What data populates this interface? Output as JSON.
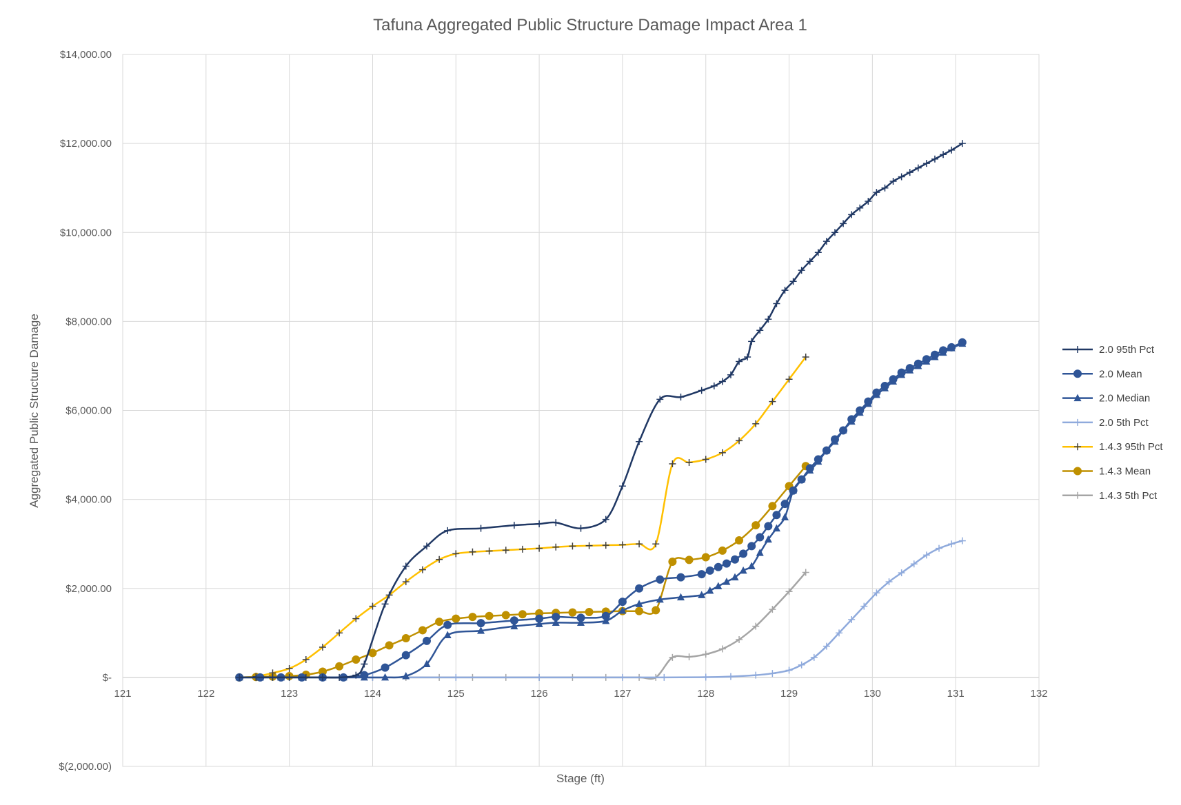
{
  "chart_data": {
    "type": "line",
    "title": "Tafuna Aggregated Public Structure Damage Impact Area 1",
    "xlabel": "Stage (ft)",
    "ylabel": "Aggregated Public Structure Damage",
    "xlim": [
      121,
      132
    ],
    "ylim": [
      -2000,
      14000
    ],
    "x_ticks": [
      "121",
      "122",
      "123",
      "124",
      "125",
      "126",
      "127",
      "128",
      "129",
      "130",
      "131",
      "132"
    ],
    "y_ticks": [
      "$(2,000.00)",
      "$-",
      "$2,000.00",
      "$4,000.00",
      "$6,000.00",
      "$8,000.00",
      "$10,000.00",
      "$12,000.00",
      "$14,000.00"
    ],
    "y_tick_values": [
      -2000,
      0,
      2000,
      4000,
      6000,
      8000,
      10000,
      12000,
      14000
    ],
    "grid": true,
    "legend_position": "right",
    "series": [
      {
        "name": "2.0 95th Pct",
        "color": "#203864",
        "marker": "plus",
        "points": [
          [
            122.4,
            0
          ],
          [
            122.6,
            0
          ],
          [
            122.8,
            0
          ],
          [
            123.0,
            0
          ],
          [
            123.2,
            0
          ],
          [
            123.4,
            0
          ],
          [
            123.6,
            0
          ],
          [
            123.8,
            50
          ],
          [
            123.9,
            300
          ],
          [
            124.15,
            1650
          ],
          [
            124.4,
            2500
          ],
          [
            124.65,
            2950
          ],
          [
            124.9,
            3300
          ],
          [
            125.3,
            3350
          ],
          [
            125.7,
            3420
          ],
          [
            126.0,
            3450
          ],
          [
            126.2,
            3480
          ],
          [
            126.5,
            3350
          ],
          [
            126.8,
            3550
          ],
          [
            127.0,
            4300
          ],
          [
            127.2,
            5300
          ],
          [
            127.45,
            6250
          ],
          [
            127.7,
            6300
          ],
          [
            127.95,
            6450
          ],
          [
            128.1,
            6550
          ],
          [
            128.2,
            6650
          ],
          [
            128.3,
            6800
          ],
          [
            128.4,
            7100
          ],
          [
            128.5,
            7200
          ],
          [
            128.55,
            7550
          ],
          [
            128.65,
            7800
          ],
          [
            128.75,
            8050
          ],
          [
            128.85,
            8400
          ],
          [
            128.95,
            8700
          ],
          [
            129.05,
            8900
          ],
          [
            129.15,
            9150
          ],
          [
            129.25,
            9350
          ],
          [
            129.35,
            9550
          ],
          [
            129.45,
            9800
          ],
          [
            129.55,
            10000
          ],
          [
            129.65,
            10200
          ],
          [
            129.75,
            10400
          ],
          [
            129.85,
            10550
          ],
          [
            129.95,
            10700
          ],
          [
            130.05,
            10900
          ],
          [
            130.15,
            11000
          ],
          [
            130.25,
            11150
          ],
          [
            130.35,
            11250
          ],
          [
            130.45,
            11350
          ],
          [
            130.55,
            11450
          ],
          [
            130.65,
            11550
          ],
          [
            130.75,
            11650
          ],
          [
            130.85,
            11750
          ],
          [
            130.95,
            11850
          ],
          [
            131.08,
            12000
          ]
        ]
      },
      {
        "name": "2.0 Mean",
        "color": "#2f5597",
        "marker": "circle",
        "points": [
          [
            122.4,
            0
          ],
          [
            122.65,
            0
          ],
          [
            122.9,
            0
          ],
          [
            123.15,
            0
          ],
          [
            123.4,
            0
          ],
          [
            123.65,
            0
          ],
          [
            123.9,
            50
          ],
          [
            124.15,
            220
          ],
          [
            124.4,
            500
          ],
          [
            124.65,
            820
          ],
          [
            124.9,
            1180
          ],
          [
            125.3,
            1220
          ],
          [
            125.7,
            1280
          ],
          [
            126.0,
            1320
          ],
          [
            126.2,
            1360
          ],
          [
            126.5,
            1340
          ],
          [
            126.8,
            1380
          ],
          [
            127.0,
            1700
          ],
          [
            127.2,
            2000
          ],
          [
            127.45,
            2200
          ],
          [
            127.7,
            2250
          ],
          [
            127.95,
            2320
          ],
          [
            128.05,
            2400
          ],
          [
            128.15,
            2480
          ],
          [
            128.25,
            2560
          ],
          [
            128.35,
            2650
          ],
          [
            128.45,
            2780
          ],
          [
            128.55,
            2950
          ],
          [
            128.65,
            3150
          ],
          [
            128.75,
            3400
          ],
          [
            128.85,
            3650
          ],
          [
            128.95,
            3900
          ],
          [
            129.05,
            4200
          ],
          [
            129.15,
            4450
          ],
          [
            129.25,
            4700
          ],
          [
            129.35,
            4900
          ],
          [
            129.45,
            5100
          ],
          [
            129.55,
            5350
          ],
          [
            129.65,
            5550
          ],
          [
            129.75,
            5800
          ],
          [
            129.85,
            6000
          ],
          [
            129.95,
            6200
          ],
          [
            130.05,
            6400
          ],
          [
            130.15,
            6550
          ],
          [
            130.25,
            6700
          ],
          [
            130.35,
            6850
          ],
          [
            130.45,
            6950
          ],
          [
            130.55,
            7050
          ],
          [
            130.65,
            7150
          ],
          [
            130.75,
            7250
          ],
          [
            130.85,
            7350
          ],
          [
            130.95,
            7420
          ],
          [
            131.08,
            7530
          ]
        ]
      },
      {
        "name": "2.0 Median",
        "color": "#2f5597",
        "marker": "triangle",
        "points": [
          [
            122.4,
            0
          ],
          [
            122.65,
            0
          ],
          [
            122.9,
            0
          ],
          [
            123.15,
            0
          ],
          [
            123.4,
            0
          ],
          [
            123.65,
            0
          ],
          [
            123.9,
            0
          ],
          [
            124.15,
            0
          ],
          [
            124.4,
            30
          ],
          [
            124.65,
            300
          ],
          [
            124.9,
            950
          ],
          [
            125.3,
            1050
          ],
          [
            125.7,
            1150
          ],
          [
            126.0,
            1200
          ],
          [
            126.2,
            1230
          ],
          [
            126.5,
            1230
          ],
          [
            126.8,
            1270
          ],
          [
            127.0,
            1500
          ],
          [
            127.2,
            1650
          ],
          [
            127.45,
            1750
          ],
          [
            127.7,
            1800
          ],
          [
            127.95,
            1850
          ],
          [
            128.05,
            1950
          ],
          [
            128.15,
            2050
          ],
          [
            128.25,
            2150
          ],
          [
            128.35,
            2250
          ],
          [
            128.45,
            2400
          ],
          [
            128.55,
            2500
          ],
          [
            128.65,
            2800
          ],
          [
            128.75,
            3100
          ],
          [
            128.85,
            3350
          ],
          [
            128.95,
            3600
          ],
          [
            129.05,
            4200
          ],
          [
            129.15,
            4450
          ],
          [
            129.25,
            4650
          ],
          [
            129.35,
            4850
          ],
          [
            129.45,
            5100
          ],
          [
            129.55,
            5300
          ],
          [
            129.65,
            5550
          ],
          [
            129.75,
            5750
          ],
          [
            129.85,
            5950
          ],
          [
            129.95,
            6150
          ],
          [
            130.05,
            6350
          ],
          [
            130.15,
            6500
          ],
          [
            130.25,
            6650
          ],
          [
            130.35,
            6800
          ],
          [
            130.45,
            6900
          ],
          [
            130.55,
            7000
          ],
          [
            130.65,
            7100
          ],
          [
            130.75,
            7200
          ],
          [
            130.85,
            7300
          ],
          [
            130.95,
            7400
          ],
          [
            131.08,
            7500
          ]
        ]
      },
      {
        "name": "2.0 5th Pct",
        "color": "#8faadc",
        "marker": "plus",
        "points": [
          [
            122.4,
            0
          ],
          [
            123.0,
            0
          ],
          [
            124.0,
            0
          ],
          [
            125.0,
            0
          ],
          [
            126.0,
            0
          ],
          [
            127.0,
            0
          ],
          [
            127.5,
            0
          ],
          [
            128.0,
            5
          ],
          [
            128.3,
            20
          ],
          [
            128.6,
            50
          ],
          [
            128.8,
            90
          ],
          [
            129.0,
            160
          ],
          [
            129.15,
            280
          ],
          [
            129.3,
            450
          ],
          [
            129.45,
            700
          ],
          [
            129.6,
            1000
          ],
          [
            129.75,
            1300
          ],
          [
            129.9,
            1600
          ],
          [
            130.05,
            1900
          ],
          [
            130.2,
            2150
          ],
          [
            130.35,
            2350
          ],
          [
            130.5,
            2550
          ],
          [
            130.65,
            2750
          ],
          [
            130.8,
            2900
          ],
          [
            130.95,
            3000
          ],
          [
            131.08,
            3070
          ]
        ]
      },
      {
        "name": "1.4.3 95th Pct",
        "color": "#ffc000",
        "marker": "plus",
        "points": [
          [
            122.4,
            0
          ],
          [
            122.6,
            20
          ],
          [
            122.8,
            100
          ],
          [
            123.0,
            200
          ],
          [
            123.2,
            400
          ],
          [
            123.4,
            680
          ],
          [
            123.6,
            1000
          ],
          [
            123.8,
            1320
          ],
          [
            124.0,
            1600
          ],
          [
            124.2,
            1850
          ],
          [
            124.4,
            2150
          ],
          [
            124.6,
            2420
          ],
          [
            124.8,
            2650
          ],
          [
            125.0,
            2780
          ],
          [
            125.2,
            2820
          ],
          [
            125.4,
            2840
          ],
          [
            125.6,
            2860
          ],
          [
            125.8,
            2880
          ],
          [
            126.0,
            2900
          ],
          [
            126.2,
            2930
          ],
          [
            126.4,
            2950
          ],
          [
            126.6,
            2960
          ],
          [
            126.8,
            2970
          ],
          [
            127.0,
            2980
          ],
          [
            127.2,
            3000
          ],
          [
            127.4,
            3000
          ],
          [
            127.6,
            4800
          ],
          [
            127.8,
            4830
          ],
          [
            128.0,
            4900
          ],
          [
            128.2,
            5050
          ],
          [
            128.4,
            5320
          ],
          [
            128.6,
            5700
          ],
          [
            128.8,
            6200
          ],
          [
            129.0,
            6700
          ],
          [
            129.2,
            7200
          ]
        ]
      },
      {
        "name": "1.4.3 Mean",
        "color": "#bf9000",
        "marker": "circle",
        "points": [
          [
            122.4,
            0
          ],
          [
            122.6,
            10
          ],
          [
            122.8,
            20
          ],
          [
            123.0,
            30
          ],
          [
            123.2,
            60
          ],
          [
            123.4,
            130
          ],
          [
            123.6,
            250
          ],
          [
            123.8,
            400
          ],
          [
            124.0,
            550
          ],
          [
            124.2,
            720
          ],
          [
            124.4,
            880
          ],
          [
            124.6,
            1060
          ],
          [
            124.8,
            1250
          ],
          [
            125.0,
            1320
          ],
          [
            125.2,
            1360
          ],
          [
            125.4,
            1380
          ],
          [
            125.6,
            1400
          ],
          [
            125.8,
            1420
          ],
          [
            126.0,
            1440
          ],
          [
            126.2,
            1450
          ],
          [
            126.4,
            1460
          ],
          [
            126.6,
            1470
          ],
          [
            126.8,
            1480
          ],
          [
            127.0,
            1490
          ],
          [
            127.2,
            1490
          ],
          [
            127.4,
            1510
          ],
          [
            127.6,
            2600
          ],
          [
            127.8,
            2640
          ],
          [
            128.0,
            2700
          ],
          [
            128.2,
            2850
          ],
          [
            128.4,
            3080
          ],
          [
            128.6,
            3420
          ],
          [
            128.8,
            3850
          ],
          [
            129.0,
            4300
          ],
          [
            129.2,
            4750
          ]
        ]
      },
      {
        "name": "1.4.3 5th Pct",
        "color": "#a5a5a5",
        "marker": "plus",
        "points": [
          [
            122.4,
            0
          ],
          [
            122.6,
            0
          ],
          [
            122.8,
            0
          ],
          [
            123.0,
            0
          ],
          [
            123.4,
            0
          ],
          [
            124.0,
            0
          ],
          [
            124.4,
            0
          ],
          [
            124.8,
            0
          ],
          [
            125.2,
            0
          ],
          [
            125.6,
            0
          ],
          [
            126.0,
            0
          ],
          [
            126.4,
            0
          ],
          [
            126.8,
            0
          ],
          [
            127.2,
            0
          ],
          [
            127.4,
            0
          ],
          [
            127.6,
            450
          ],
          [
            127.8,
            460
          ],
          [
            128.0,
            520
          ],
          [
            128.2,
            640
          ],
          [
            128.4,
            850
          ],
          [
            128.6,
            1150
          ],
          [
            128.8,
            1530
          ],
          [
            129.0,
            1930
          ],
          [
            129.2,
            2360
          ]
        ]
      }
    ]
  }
}
